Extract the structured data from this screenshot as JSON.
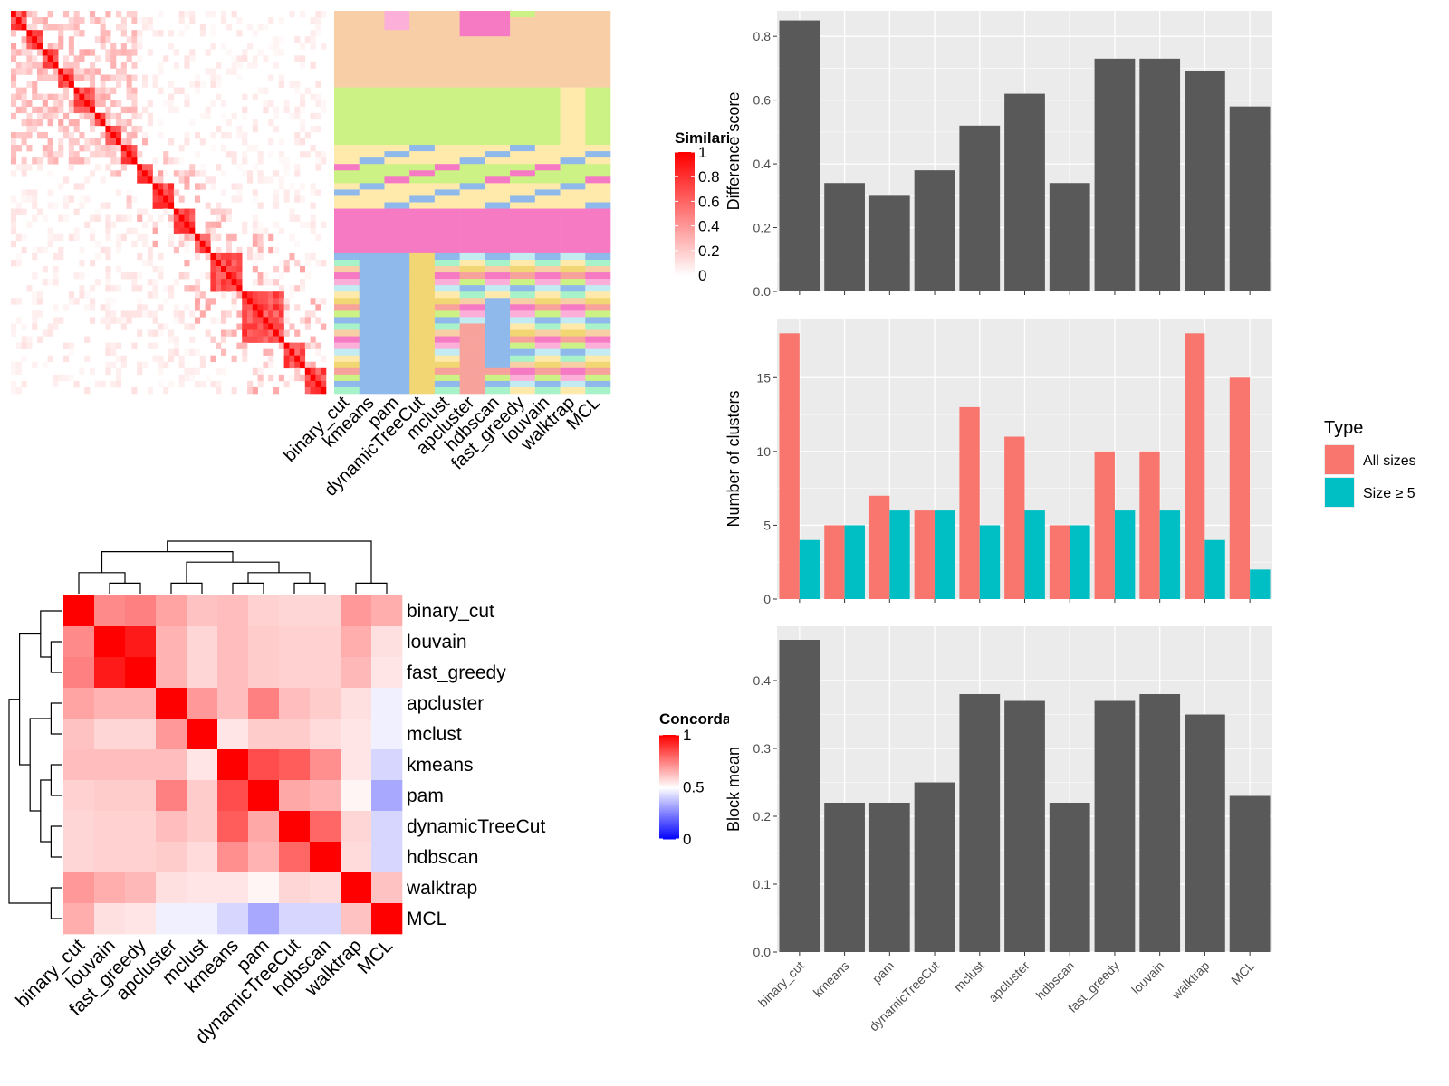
{
  "methods": [
    "binary_cut",
    "kmeans",
    "pam",
    "dynamicTreeCut",
    "mclust",
    "apcluster",
    "hdbscan",
    "fast_greedy",
    "louvain",
    "walktrap",
    "MCL"
  ],
  "similarity_legend": {
    "title": "Similarity",
    "ticks": [
      "1",
      "0.8",
      "0.6",
      "0.4",
      "0.2",
      "0"
    ]
  },
  "concordance_legend": {
    "title": "Concordance",
    "ticks": [
      "1",
      "0.5",
      "0"
    ]
  },
  "concordance_order": [
    "binary_cut",
    "louvain",
    "fast_greedy",
    "apcluster",
    "mclust",
    "kmeans",
    "pam",
    "dynamicTreeCut",
    "hdbscan",
    "walktrap",
    "MCL"
  ],
  "type_legend": {
    "title": "Type",
    "entries": [
      {
        "label": "All sizes",
        "color": "#F8766D"
      },
      {
        "label": "Size ≥ 5",
        "color": "#00BFC4"
      }
    ]
  },
  "colors": {
    "bar": "#595959",
    "panel": "#EBEBEB",
    "all_sizes": "#F8766D",
    "size_ge_5": "#00BFC4",
    "heat_high": "#FF0000",
    "heat_mid": "#FFFFFF",
    "heat_low": "#0000FF"
  },
  "chart_data": [
    {
      "type": "heatmap",
      "name": "similarity-matrix",
      "value_range": [
        0,
        1
      ],
      "n_terms": 60
    },
    {
      "type": "heatmap",
      "name": "cluster-assignment",
      "categories": [
        "binary_cut",
        "kmeans",
        "pam",
        "dynamicTreeCut",
        "mclust",
        "apcluster",
        "hdbscan",
        "fast_greedy",
        "louvain",
        "walktrap",
        "MCL"
      ],
      "palette": [
        "#F7CEA6",
        "#CCF285",
        "#FFEAAB",
        "#F57AC3",
        "#8FB8EB",
        "#F2D673",
        "#FCB0D9",
        "#A8F2C9",
        "#F7A39C",
        "#C2EBF2"
      ]
    },
    {
      "type": "heatmap",
      "name": "concordance",
      "categories": [
        "binary_cut",
        "louvain",
        "fast_greedy",
        "apcluster",
        "mclust",
        "kmeans",
        "pam",
        "dynamicTreeCut",
        "hdbscan",
        "walktrap",
        "MCL"
      ],
      "value_range": [
        0,
        1
      ],
      "values": [
        [
          1.0,
          0.73,
          0.75,
          0.68,
          0.62,
          0.63,
          0.59,
          0.58,
          0.58,
          0.7,
          0.66
        ],
        [
          0.73,
          1.0,
          0.95,
          0.65,
          0.58,
          0.63,
          0.6,
          0.59,
          0.59,
          0.66,
          0.56
        ],
        [
          0.75,
          0.95,
          1.0,
          0.65,
          0.58,
          0.63,
          0.6,
          0.59,
          0.59,
          0.64,
          0.55
        ],
        [
          0.68,
          0.65,
          0.65,
          1.0,
          0.7,
          0.63,
          0.75,
          0.63,
          0.6,
          0.56,
          0.47
        ],
        [
          0.62,
          0.58,
          0.58,
          0.7,
          1.0,
          0.55,
          0.6,
          0.6,
          0.57,
          0.55,
          0.47
        ],
        [
          0.63,
          0.63,
          0.63,
          0.63,
          0.55,
          1.0,
          0.85,
          0.82,
          0.72,
          0.55,
          0.42
        ],
        [
          0.59,
          0.6,
          0.6,
          0.75,
          0.6,
          0.85,
          1.0,
          0.67,
          0.65,
          0.52,
          0.33
        ],
        [
          0.58,
          0.59,
          0.59,
          0.63,
          0.6,
          0.82,
          0.67,
          1.0,
          0.8,
          0.58,
          0.42
        ],
        [
          0.58,
          0.59,
          0.59,
          0.6,
          0.57,
          0.72,
          0.65,
          0.8,
          1.0,
          0.57,
          0.42
        ],
        [
          0.7,
          0.66,
          0.64,
          0.56,
          0.55,
          0.55,
          0.52,
          0.58,
          0.57,
          1.0,
          0.62
        ],
        [
          0.66,
          0.56,
          0.55,
          0.47,
          0.47,
          0.42,
          0.33,
          0.42,
          0.42,
          0.62,
          1.0
        ]
      ]
    },
    {
      "type": "bar",
      "name": "difference-score",
      "categories": [
        "binary_cut",
        "kmeans",
        "pam",
        "dynamicTreeCut",
        "mclust",
        "apcluster",
        "hdbscan",
        "fast_greedy",
        "louvain",
        "walktrap",
        "MCL"
      ],
      "values": [
        0.85,
        0.34,
        0.3,
        0.38,
        0.52,
        0.62,
        0.34,
        0.73,
        0.73,
        0.69,
        0.58
      ],
      "ylabel": "Difference score",
      "ylim": [
        0,
        0.88
      ],
      "yticks": [
        0.0,
        0.2,
        0.4,
        0.6,
        0.8
      ],
      "ytick_labels": [
        "0.0",
        "0.2",
        "0.4",
        "0.6",
        "0.8"
      ],
      "grid": true
    },
    {
      "type": "bar",
      "name": "number-of-clusters",
      "categories": [
        "binary_cut",
        "kmeans",
        "pam",
        "dynamicTreeCut",
        "mclust",
        "apcluster",
        "hdbscan",
        "fast_greedy",
        "louvain",
        "walktrap",
        "MCL"
      ],
      "series": [
        {
          "name": "All sizes",
          "values": [
            18,
            5,
            7,
            6,
            13,
            11,
            5,
            10,
            10,
            18,
            15
          ]
        },
        {
          "name": "Size ≥ 5",
          "values": [
            4,
            5,
            6,
            6,
            5,
            6,
            5,
            6,
            6,
            4,
            2
          ]
        }
      ],
      "ylabel": "Number of clusters",
      "ylim": [
        0,
        19
      ],
      "yticks": [
        0,
        5,
        10,
        15
      ],
      "ytick_labels": [
        "0",
        "5",
        "10",
        "15"
      ],
      "legend": "right",
      "grid": true
    },
    {
      "type": "bar",
      "name": "block-mean",
      "categories": [
        "binary_cut",
        "kmeans",
        "pam",
        "dynamicTreeCut",
        "mclust",
        "apcluster",
        "hdbscan",
        "fast_greedy",
        "louvain",
        "walktrap",
        "MCL"
      ],
      "values": [
        0.46,
        0.22,
        0.22,
        0.25,
        0.38,
        0.37,
        0.22,
        0.37,
        0.38,
        0.35,
        0.23
      ],
      "ylabel": "Block mean",
      "ylim": [
        0,
        0.48
      ],
      "yticks": [
        0.0,
        0.1,
        0.2,
        0.3,
        0.4
      ],
      "ytick_labels": [
        "0.0",
        "0.1",
        "0.2",
        "0.3",
        "0.4"
      ],
      "grid": true
    }
  ]
}
